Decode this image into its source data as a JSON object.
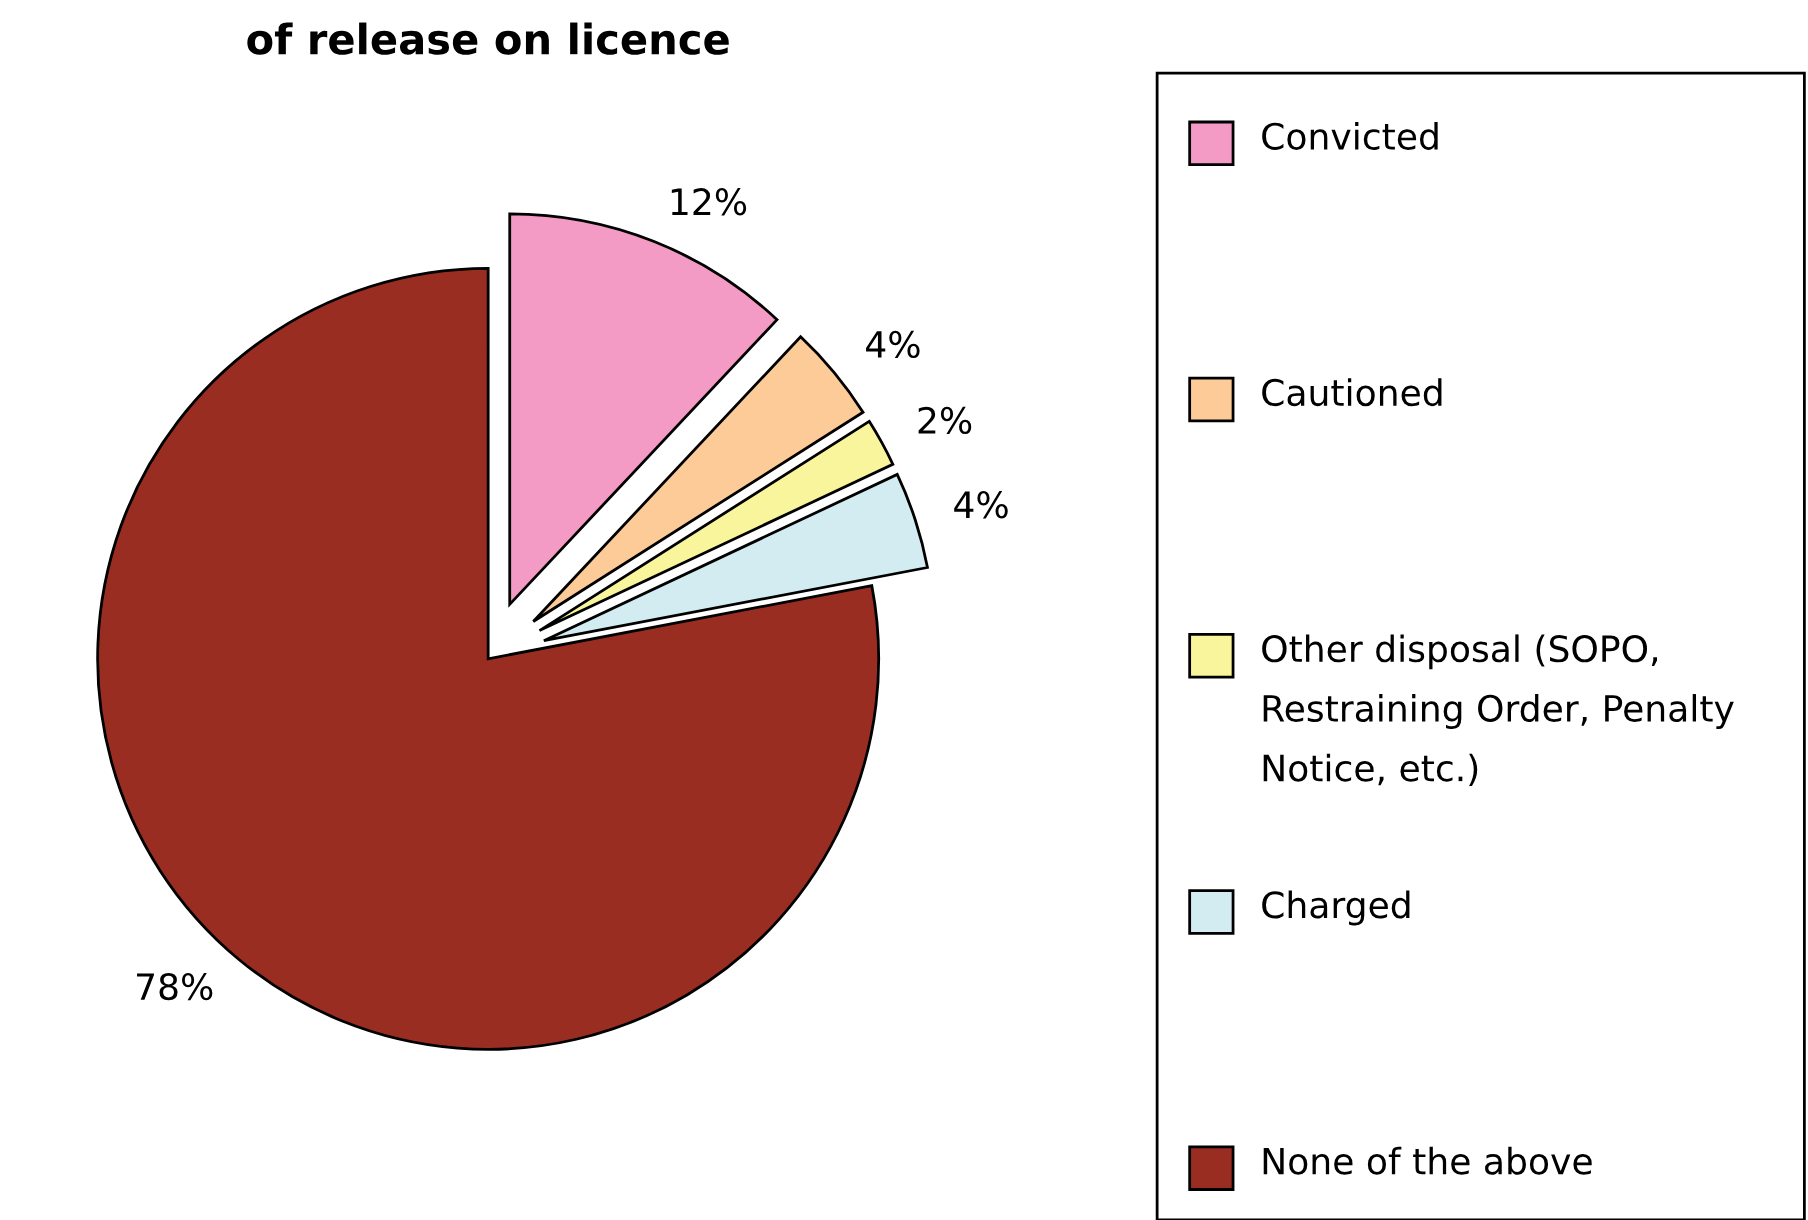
{
  "chart_data": {
    "type": "pie",
    "title": "of release on licence",
    "categories": [
      "Convicted",
      "Cautioned",
      "Other disposal (SOPO, Restraining Order, Penalty Notice, etc.)",
      "Charged",
      "None of the above"
    ],
    "values": [
      12,
      4,
      2,
      4,
      78
    ],
    "colors": [
      "#f39bc4",
      "#fdcb98",
      "#f9f59c",
      "#d3ecf2",
      "#9a2d21"
    ],
    "value_labels": [
      "12%",
      "4%",
      "2%",
      "4%",
      "78%"
    ],
    "legend": "right"
  }
}
